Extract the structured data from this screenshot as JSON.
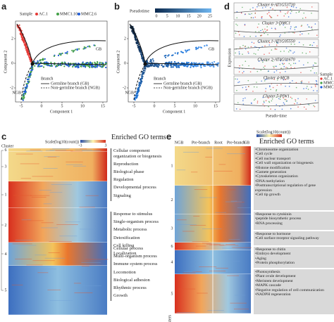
{
  "panels": {
    "a": {
      "label": "a",
      "legend_title": "Sample",
      "legend": [
        "AC.1",
        "MMC1.10",
        "MMC2.6"
      ],
      "x_label": "Component 1",
      "y_label": "Component 2",
      "xticks": [
        -5,
        0,
        5,
        10,
        15
      ],
      "yticks": [
        2,
        0,
        -2
      ],
      "gb": "GB",
      "ngb": "NGB",
      "branch_title": "Branch",
      "branches": [
        "Germline branch (GB)",
        "Non-germline branch (NGB)"
      ]
    },
    "b": {
      "label": "b",
      "colorbar_title": "Pseudotime",
      "colorbar_ticks": [
        0,
        5,
        10,
        15,
        20,
        25
      ],
      "x_label": "Component 1",
      "y_label": "Component 2",
      "xticks": [
        -5,
        0,
        5,
        10,
        15
      ],
      "yticks": [
        2,
        0,
        -2
      ],
      "gb": "GB",
      "ngb": "NGB",
      "branch_title": "Branch",
      "branches": [
        "Germline branch (GB)",
        "Non-germline branch (NGB)"
      ]
    },
    "d": {
      "label": "d",
      "clusters": [
        "Cluster 6-AT1G53730",
        "Cluster 3-DMC1",
        "Cluster 1-AT1G05550",
        "Cluster 2-AT4G01670",
        "Cluster 4-MCB",
        "Cluster 5-PIW1"
      ],
      "y_label": "Expression",
      "x_label": "Pseudo-time",
      "legend_title": "Sample",
      "legend": [
        "AC.1",
        "MMC1.10",
        "MMC2.6"
      ]
    },
    "c": {
      "label": "c",
      "cluster_title": "Cluster",
      "scale_title": "Scale(log10(count))",
      "scale_ticks": [
        -3,
        3
      ],
      "clusters": [
        6,
        3,
        1,
        2,
        4,
        5
      ],
      "go_title": "Enriched GO terms",
      "go_groups": [
        [
          "Cellular component organization or biogenesis",
          "Reproduction",
          "Biological phase",
          "Regulation",
          "Developmental process",
          "Signaling"
        ],
        [
          "Response to stimulus",
          "Single-organism process",
          "Metabolic process",
          "Detoxification",
          "Cell killing",
          "Localization"
        ],
        [
          "Cellular process",
          "Multi-organism process",
          "Immune system process",
          "Locomotion",
          "Biological adhesion",
          "Rhythmic process",
          "Growth"
        ]
      ]
    },
    "e": {
      "label": "e",
      "columns": [
        "NGB",
        "Pre-branch",
        "Root",
        "Pre-branch",
        "GB"
      ],
      "clusters_title": "Clusters",
      "clusters": [
        1,
        2,
        3,
        6,
        4,
        5
      ],
      "scale_title": "Scale(log10(count))",
      "go_title": "Enriched GO terms",
      "go_groups": [
        [
          "Chromosome organization",
          "Cell cycle",
          "Cell nuclear transport",
          "Cell wall organization or biogenesis",
          "Histone modification",
          "Gamete generation",
          "Cytoskeleton organization",
          "DNA methylation",
          "Posttranscriptional regulation of gene expression",
          "Cell tip growth"
        ],
        [
          "Response to cytokinin",
          "peptide biosynthetic process",
          "RNA processing"
        ],
        [
          "Response to hormone",
          "Cell surface receptor signaling pathway"
        ],
        [
          "Response to chitin",
          "Embryo development",
          "Aging",
          "Protein phosphorylation"
        ],
        [
          "Photosynthesis",
          "Plant ovule development",
          "Meristem development",
          "MAPK cascade",
          "Negative regulation of cell communication",
          "NADPH regeneration"
        ]
      ]
    }
  }
}
